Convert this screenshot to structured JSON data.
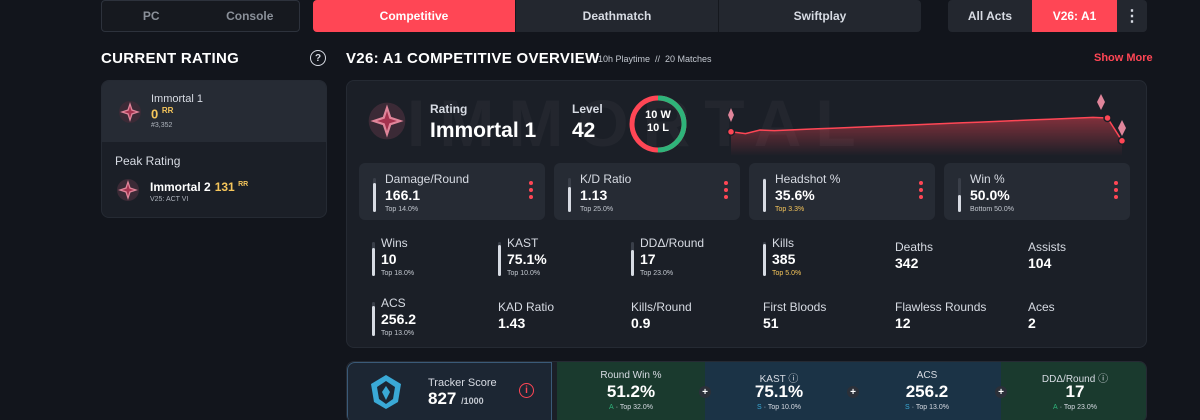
{
  "platform": [
    "PC",
    "Console"
  ],
  "modes": [
    "Competitive",
    "Deathmatch",
    "Swiftplay"
  ],
  "acts": {
    "all": "All Acts",
    "current": "V26: A1",
    "more": "⋮"
  },
  "current_rating": {
    "title": "CURRENT RATING",
    "help": "?",
    "rank": "Immortal 1",
    "rr": "0",
    "rr_unit": "RR",
    "position": "#3,352",
    "peak_label": "Peak Rating",
    "peak_rank": "Immortal 2",
    "peak_rr": "131",
    "peak_rr_unit": "RR",
    "peak_act": "V25: ACT VI"
  },
  "overview": {
    "title": "V26: A1 COMPETITIVE OVERVIEW",
    "meta": "10h Playtime  //  20 Matches",
    "show_more": "Show More",
    "watermark": "IMMORTAL",
    "rating_label": "Rating",
    "rating_value": "Immortal 1",
    "level_label": "Level",
    "level_value": "42",
    "wins_text": "10 W",
    "losses_text": "10 L",
    "wins": 10,
    "losses": 10
  },
  "rating_trend": [
    0.27,
    0.24,
    0.3,
    0.29,
    0.3,
    0.31,
    0.32,
    0.33,
    0.34,
    0.35,
    0.36,
    0.37,
    0.38,
    0.39,
    0.4,
    0.41,
    0.42,
    0.43,
    0.44,
    0.45,
    0.46,
    0.47,
    0.48,
    0.49,
    0.5,
    0.51,
    0.5,
    0.12
  ],
  "colors": {
    "accent": "#ff4655",
    "win": "#2fb37a",
    "loss": "#ff4655",
    "gold": "#f6c65b",
    "tracker": "#3aa9d6"
  },
  "stat_boxes": [
    {
      "label": "Damage/Round",
      "value": "166.1",
      "sub": "Top 14.0%",
      "fill": 0.86,
      "gold": false
    },
    {
      "label": "K/D Ratio",
      "value": "1.13",
      "sub": "Top 25.0%",
      "fill": 0.75,
      "gold": false
    },
    {
      "label": "Headshot %",
      "value": "35.6%",
      "sub": "Top 3.3%",
      "fill": 0.97,
      "gold": true
    },
    {
      "label": "Win %",
      "value": "50.0%",
      "sub": "Bottom 50.0%",
      "fill": 0.5,
      "gold": false
    }
  ],
  "row1": [
    {
      "label": "Wins",
      "value": "10",
      "sub": "Top 18.0%",
      "fill": 0.82,
      "gold": false
    },
    {
      "label": "KAST",
      "value": "75.1%",
      "sub": "Top 10.0%",
      "fill": 0.9,
      "gold": false
    },
    {
      "label": "DDΔ/Round",
      "value": "17",
      "sub": "Top 23.0%",
      "fill": 0.77,
      "gold": false
    },
    {
      "label": "Kills",
      "value": "385",
      "sub": "Top 5.0%",
      "fill": 0.95,
      "gold": true
    },
    {
      "label": "Deaths",
      "value": "342"
    },
    {
      "label": "Assists",
      "value": "104"
    }
  ],
  "row2": [
    {
      "label": "ACS",
      "value": "256.2",
      "sub": "Top 13.0%",
      "fill": 0.87,
      "gold": false
    },
    {
      "label": "KAD Ratio",
      "value": "1.43"
    },
    {
      "label": "Kills/Round",
      "value": "0.9"
    },
    {
      "label": "First Bloods",
      "value": "51"
    },
    {
      "label": "Flawless Rounds",
      "value": "12"
    },
    {
      "label": "Aces",
      "value": "2"
    }
  ],
  "tracker": {
    "label": "Tracker Score",
    "value": "827",
    "max": "/1000",
    "info": "i",
    "cells": [
      {
        "label": "Round Win %",
        "value": "51.2%",
        "grade": "A",
        "sub": "· Top 32.0%",
        "bg": "#1a3a2e",
        "info": false
      },
      {
        "label": "KAST",
        "value": "75.1%",
        "grade": "S",
        "sub": "· Top 10.0%",
        "bg": "#1b3346",
        "info": true
      },
      {
        "label": "ACS",
        "value": "256.2",
        "grade": "S",
        "sub": "· Top 13.0%",
        "bg": "#1b3346",
        "info": false
      },
      {
        "label": "DDΔ/Round",
        "value": "17",
        "grade": "A",
        "sub": "· Top 23.0%",
        "bg": "#1a3a2e",
        "info": true
      }
    ]
  }
}
